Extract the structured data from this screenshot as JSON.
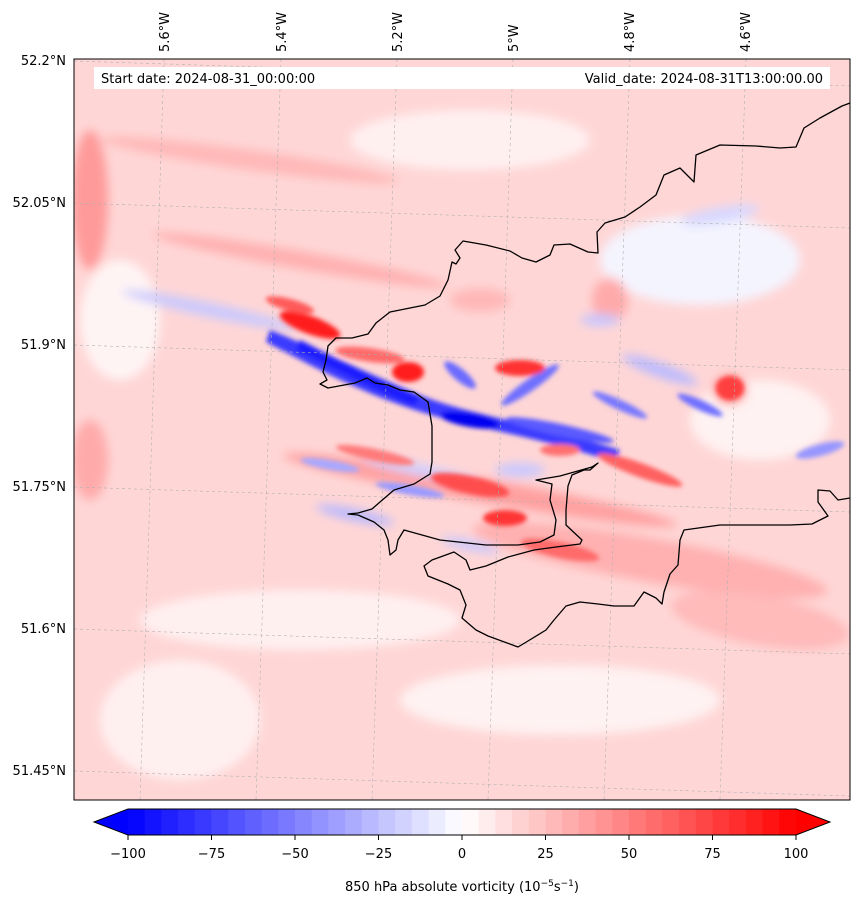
{
  "map": {
    "start_date_text": "Start date: 2024-08-31_00:00:00",
    "valid_date_text": "Valid_date: 2024-08-31T13:00:00.00",
    "lon_ticks": [
      "5.6°W",
      "5.4°W",
      "5.2°W",
      "5°W",
      "4.8°W",
      "4.6°W"
    ],
    "lat_ticks": [
      "52.2°N",
      "52.05°N",
      "51.9°N",
      "51.75°N",
      "51.6°N",
      "51.45°N"
    ],
    "gridlines": true,
    "coastline": true
  },
  "colorbar": {
    "ticks": [
      "−100",
      "−75",
      "−50",
      "−25",
      "0",
      "25",
      "50",
      "75",
      "100"
    ],
    "label_main": "850 hPa absolute vorticity (10",
    "label_exp1": "−5",
    "label_mid": "s",
    "label_exp2": "−1",
    "label_end": ")",
    "min": -100,
    "max": 100,
    "extend": "both",
    "colormap": "bwr",
    "color_low": "#0000ff",
    "color_mid": "#ffffff",
    "color_high": "#ff0000"
  }
}
